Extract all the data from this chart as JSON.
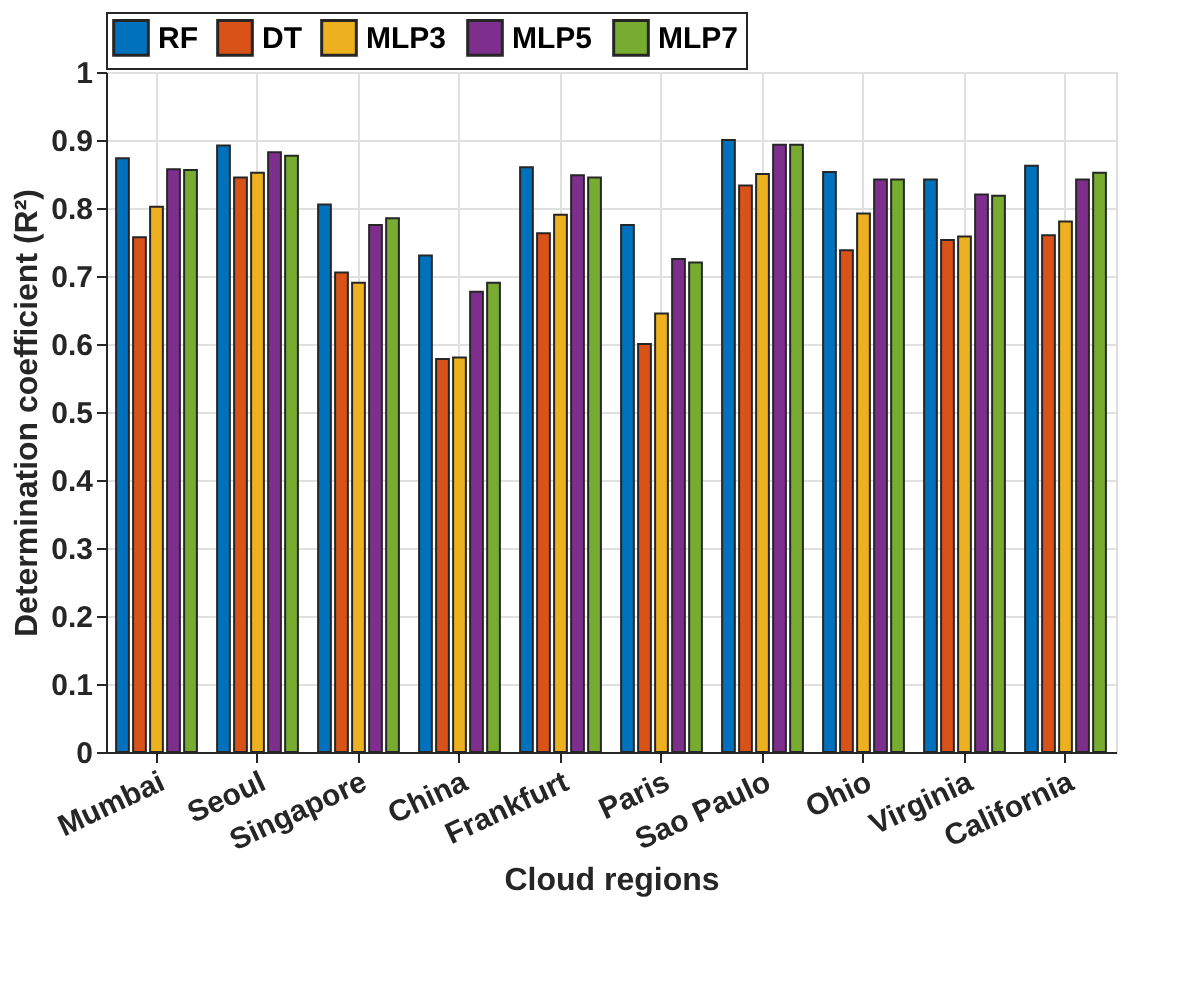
{
  "chart_data": {
    "type": "bar",
    "xlabel": "Cloud regions",
    "ylabel": "Determination coefficient (R²)",
    "categories": [
      "Mumbai",
      "Seoul",
      "Singapore",
      "China",
      "Frankfurt",
      "Paris",
      "Sao Paulo",
      "Ohio",
      "Virginia",
      "California"
    ],
    "series": [
      {
        "name": "RF",
        "color": "#0072bd",
        "values": [
          0.873,
          0.892,
          0.805,
          0.73,
          0.86,
          0.775,
          0.9,
          0.853,
          0.842,
          0.862
        ]
      },
      {
        "name": "DT",
        "color": "#d95319",
        "values": [
          0.757,
          0.845,
          0.705,
          0.578,
          0.763,
          0.6,
          0.833,
          0.738,
          0.753,
          0.76
        ]
      },
      {
        "name": "MLP3",
        "color": "#edb120",
        "values": [
          0.802,
          0.852,
          0.69,
          0.58,
          0.79,
          0.645,
          0.85,
          0.792,
          0.758,
          0.78
        ]
      },
      {
        "name": "MLP5",
        "color": "#7e2f8e",
        "values": [
          0.857,
          0.882,
          0.775,
          0.677,
          0.848,
          0.725,
          0.893,
          0.842,
          0.82,
          0.842
        ]
      },
      {
        "name": "MLP7",
        "color": "#77ac30",
        "values": [
          0.856,
          0.877,
          0.785,
          0.69,
          0.845,
          0.72,
          0.893,
          0.842,
          0.818,
          0.852
        ]
      }
    ],
    "ylim": [
      0,
      1
    ],
    "yticks": [
      0,
      0.1,
      0.2,
      0.3,
      0.4,
      0.5,
      0.6,
      0.7,
      0.8,
      0.9,
      1
    ],
    "grid": true,
    "legend": "top"
  }
}
